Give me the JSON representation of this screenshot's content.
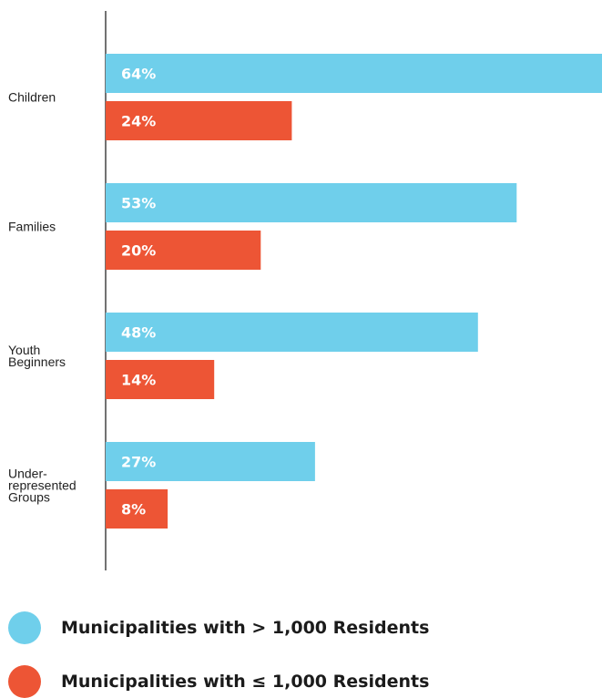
{
  "chart_data": {
    "type": "bar",
    "orientation": "horizontal",
    "categories": [
      [
        "Children"
      ],
      [
        "Families"
      ],
      [
        "Youth",
        "Beginners"
      ],
      [
        "Under-",
        "represented",
        "Groups"
      ]
    ],
    "series": [
      {
        "name": "Municipalities with > 1,000 Residents",
        "color": "#6fcfeb",
        "values": [
          64,
          53,
          48,
          27
        ],
        "labels": [
          "64%",
          "53%",
          "48%",
          "27%"
        ]
      },
      {
        "name": "Municipalities with ≤ 1,000 Residents",
        "color": "#ed5535",
        "values": [
          24,
          20,
          14,
          8
        ],
        "labels": [
          "24%",
          "20%",
          "14%",
          "8%"
        ]
      }
    ],
    "title": "",
    "xlabel": "",
    "ylabel": "",
    "grid": false,
    "legend_position": "bottom"
  }
}
